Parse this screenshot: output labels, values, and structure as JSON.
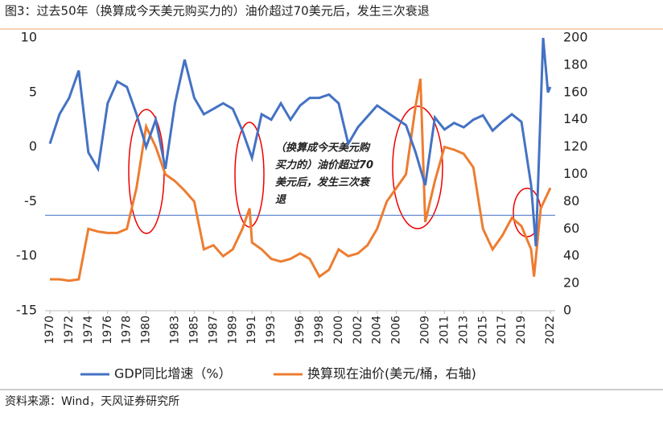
{
  "chart_data": {
    "type": "line",
    "title": "图3：过去50年（换算成今天美元购买力的）油价超过70美元后，发生三次衰退",
    "source": "资料来源：Wind，天风证券研究所",
    "annotation": [
      "（换算成今天美元购",
      "买力的）油价超过70",
      "美元后，发生三次衰",
      "退"
    ],
    "xlim": [
      1970,
      2022
    ],
    "xticks": [
      1970,
      1972,
      1974,
      1976,
      1978,
      1980,
      1983,
      1985,
      1987,
      1989,
      1991,
      1993,
      1996,
      1998,
      2000,
      2002,
      2004,
      2006,
      2009,
      2011,
      2013,
      2015,
      2017,
      2019,
      2022
    ],
    "ylim": [
      -15,
      10
    ],
    "yticks": [
      -15,
      -10,
      -5,
      0,
      5,
      10
    ],
    "y2lim": [
      0,
      200
    ],
    "y2ticks": [
      0,
      20,
      40,
      60,
      80,
      100,
      120,
      140,
      160,
      180,
      200
    ],
    "reference_line": {
      "value": 70,
      "axis": "y2",
      "color": "#4472c4"
    },
    "series": [
      {
        "name": "GDP同比增速（%）",
        "color": "#4472c4",
        "axis": "y",
        "x": [
          1970,
          1971,
          1972,
          1973,
          1974,
          1975,
          1976,
          1977,
          1978,
          1979,
          1980,
          1981,
          1982,
          1983,
          1984,
          1985,
          1986,
          1987,
          1988,
          1989,
          1990,
          1991,
          1992,
          1993,
          1994,
          1995,
          1996,
          1997,
          1998,
          1999,
          2000,
          2001,
          2002,
          2003,
          2004,
          2005,
          2006,
          2007,
          2008,
          2009,
          2010,
          2011,
          2012,
          2013,
          2014,
          2015,
          2016,
          2017,
          2018,
          2019,
          2020,
          2020.5,
          2021.25,
          2021.75,
          2022
        ],
        "values": [
          0.3,
          3,
          4.5,
          7,
          -0.5,
          -2,
          4,
          6,
          5.5,
          3,
          0,
          2.5,
          -2,
          4,
          8,
          4.5,
          3,
          3.5,
          4,
          3.5,
          1.5,
          -1,
          3,
          2.5,
          4,
          2.5,
          3.8,
          4.5,
          4.5,
          4.8,
          4,
          0.3,
          1.8,
          2.8,
          3.8,
          3.2,
          2.6,
          2,
          -0.5,
          -3.5,
          2.7,
          1.6,
          2.2,
          1.8,
          2.5,
          2.9,
          1.5,
          2.3,
          3,
          2.3,
          -3.5,
          -9.1,
          10,
          5,
          5.5
        ]
      },
      {
        "name": "换算现在油价(美元/桶，右轴)",
        "color": "#ed7d31",
        "axis": "y2",
        "x": [
          1970,
          1971,
          1972,
          1973,
          1974,
          1975,
          1976,
          1977,
          1978,
          1979,
          1980,
          1981,
          1982,
          1983,
          1984,
          1985,
          1986,
          1987,
          1988,
          1989,
          1990,
          1990.75,
          1991,
          1992,
          1993,
          1994,
          1995,
          1996,
          1997,
          1998,
          1999,
          2000,
          2001,
          2002,
          2003,
          2004,
          2005,
          2006,
          2007,
          2008,
          2008.5,
          2009,
          2010,
          2011,
          2012,
          2013,
          2014,
          2015,
          2016,
          2017,
          2018,
          2019,
          2020,
          2020.3,
          2021,
          2022
        ],
        "values": [
          23,
          23,
          22,
          23,
          60,
          58,
          57,
          57,
          60,
          90,
          135,
          120,
          100,
          95,
          88,
          80,
          45,
          48,
          40,
          45,
          60,
          75,
          50,
          45,
          38,
          36,
          38,
          42,
          38,
          25,
          30,
          45,
          40,
          42,
          48,
          60,
          80,
          90,
          100,
          150,
          170,
          65,
          95,
          120,
          118,
          115,
          105,
          60,
          45,
          55,
          68,
          62,
          45,
          25,
          75,
          90
        ]
      }
    ]
  }
}
